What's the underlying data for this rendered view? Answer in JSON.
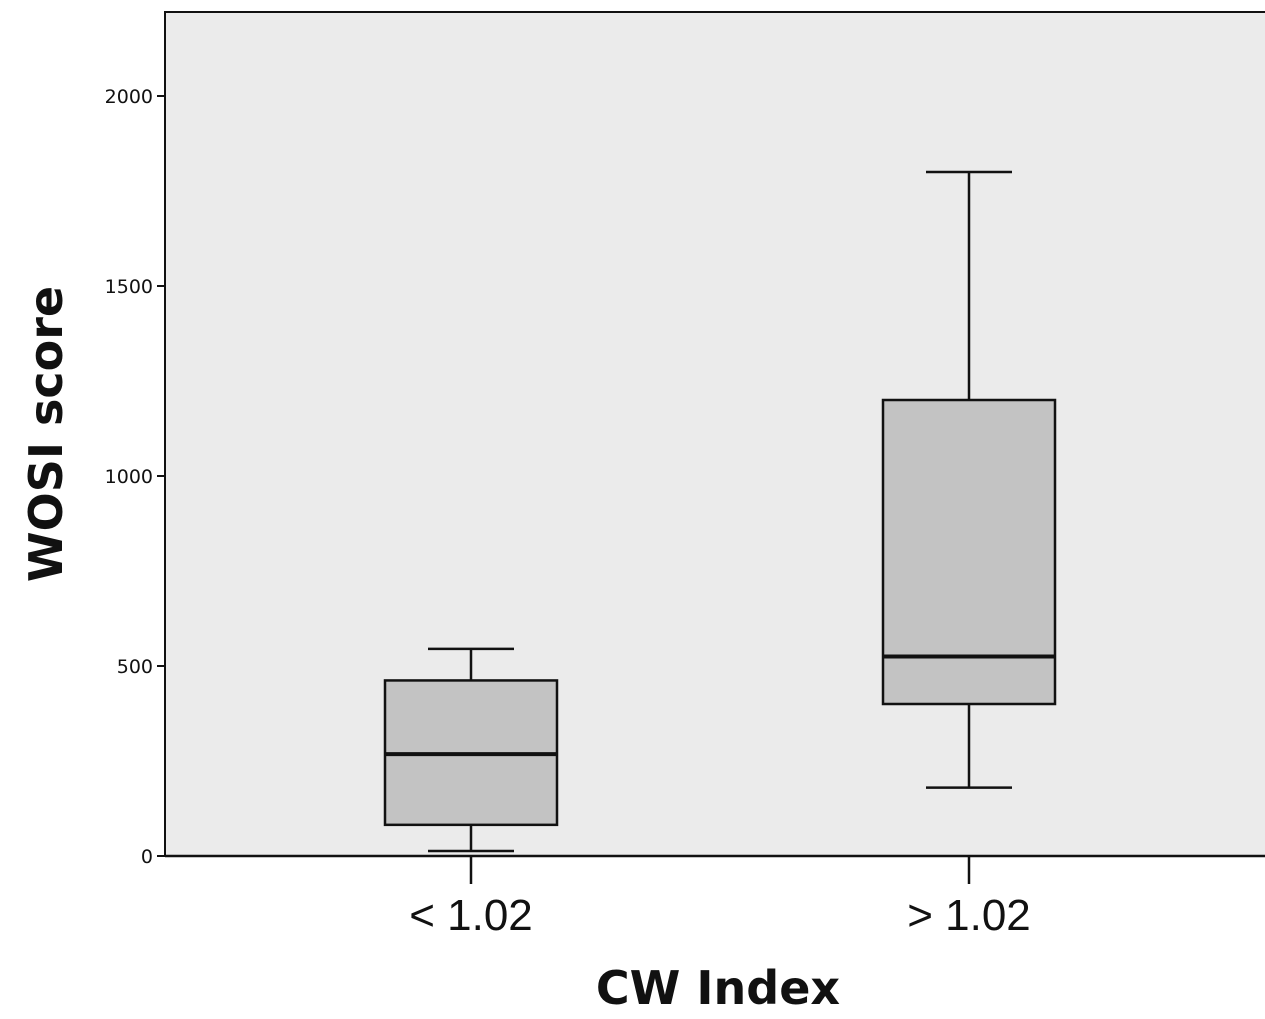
{
  "chart_data": {
    "type": "boxplot",
    "title": "",
    "xlabel": "CW Index",
    "ylabel": "WOSI score",
    "ylim": [
      0,
      2200
    ],
    "yticks": [
      0,
      500,
      1000,
      1500,
      2000
    ],
    "grid": false,
    "colors": {
      "plot_background": "#ebebeb",
      "box_fill": "#c3c3c3",
      "line": "#111111"
    },
    "groups": [
      {
        "label": "< 1.02",
        "min": 13,
        "q1": 82,
        "median": 268,
        "q3": 462,
        "max": 545
      },
      {
        "label": "> 1.02",
        "min": 180,
        "q1": 400,
        "median": 525,
        "q3": 1200,
        "max": 1800
      }
    ]
  }
}
